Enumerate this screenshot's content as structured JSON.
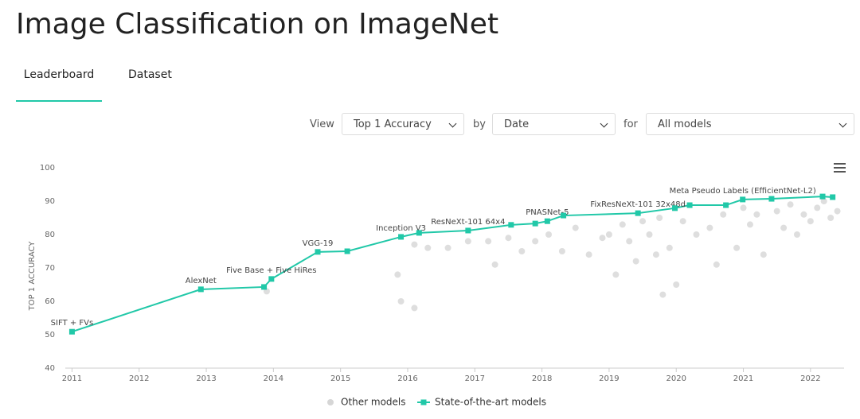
{
  "title": "Image Classification on ImageNet",
  "tabs": [
    "Leaderboard",
    "Dataset"
  ],
  "controls": {
    "view_label": "View",
    "view_value": "Top 1 Accuracy",
    "by_label": "by",
    "by_value": "Date",
    "for_label": "for",
    "for_value": "All models"
  },
  "chart_data": {
    "type": "scatter",
    "ylabel": "TOP 1 ACCURACY",
    "xlim": [
      2010.9,
      2022.5
    ],
    "xticks": [
      2011,
      2012,
      2013,
      2014,
      2015,
      2016,
      2017,
      2018,
      2019,
      2020,
      2021,
      2022
    ],
    "ylim": [
      40,
      100
    ],
    "yticks": [
      40,
      50,
      60,
      70,
      80,
      90,
      100
    ],
    "grid": false,
    "legend": "bottom",
    "series": [
      {
        "name": "Other models",
        "color": "#d6d6d6",
        "x": [
          2013.9,
          2015.85,
          2015.9,
          2016.1,
          2016.1,
          2016.3,
          2016.6,
          2016.9,
          2017.2,
          2017.3,
          2017.5,
          2017.7,
          2017.9,
          2018.1,
          2018.3,
          2018.5,
          2018.7,
          2018.9,
          2019.0,
          2019.1,
          2019.2,
          2019.3,
          2019.4,
          2019.5,
          2019.6,
          2019.7,
          2019.75,
          2019.8,
          2019.9,
          2020.0,
          2020.1,
          2020.3,
          2020.5,
          2020.6,
          2020.7,
          2020.9,
          2021.0,
          2021.1,
          2021.2,
          2021.3,
          2021.5,
          2021.6,
          2021.7,
          2021.8,
          2021.9,
          2022.0,
          2022.1,
          2022.2,
          2022.3,
          2022.4
        ],
        "values": [
          63,
          68,
          60,
          58,
          77,
          76,
          76,
          78,
          78,
          71,
          79,
          75,
          78,
          80,
          75,
          82,
          74,
          79,
          80,
          68,
          83,
          78,
          72,
          84,
          80,
          74,
          85,
          62,
          76,
          65,
          84,
          80,
          82,
          71,
          86,
          76,
          88,
          83,
          86,
          74,
          87,
          82,
          89,
          80,
          86,
          84,
          88,
          90,
          85,
          87
        ]
      },
      {
        "name": "State-of-the-art models",
        "color": "#21c8a8",
        "x": [
          2011.0,
          2012.92,
          2013.86,
          2013.97,
          2014.66,
          2015.1,
          2015.9,
          2016.17,
          2016.9,
          2017.54,
          2017.9,
          2018.08,
          2018.32,
          2019.43,
          2019.98,
          2020.2,
          2020.74,
          2020.99,
          2021.42,
          2022.18,
          2022.33
        ],
        "values": [
          50.9,
          63.6,
          64.3,
          66.7,
          74.8,
          75.0,
          79.3,
          80.5,
          81.2,
          82.9,
          83.3,
          84.0,
          85.7,
          86.4,
          87.9,
          88.8,
          88.8,
          90.5,
          90.7,
          91.4,
          91.2
        ],
        "point_labels": [
          "SIFT + FVs",
          "AlexNet",
          null,
          "Five Base + Five HiRes",
          "VGG-19",
          null,
          "Inception V3",
          null,
          "ResNeXt-101 64x4",
          null,
          null,
          "PNASNet-5",
          null,
          "FixResNeXt-101 32x48d",
          null,
          null,
          null,
          "Meta Pseudo Labels (EfficientNet-L2)",
          null,
          null,
          null
        ]
      }
    ]
  }
}
